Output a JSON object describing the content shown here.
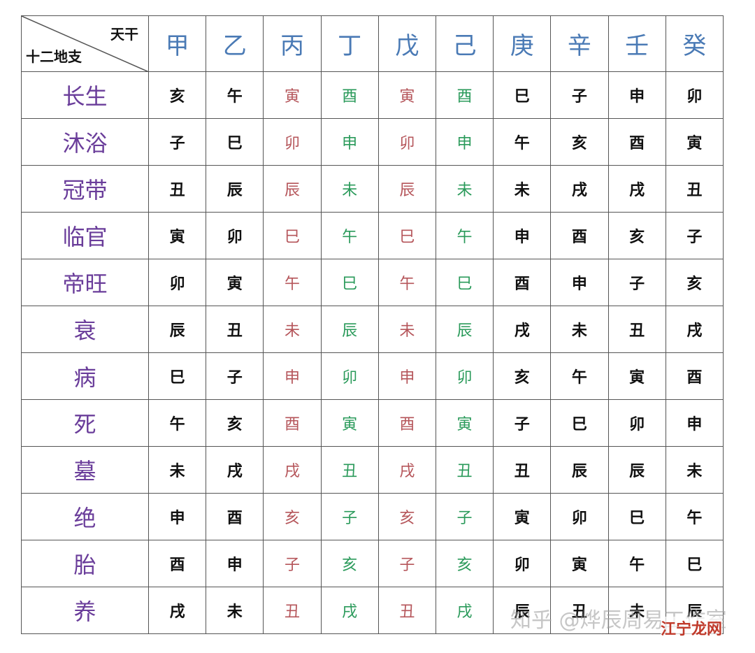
{
  "table": {
    "corner_top": "天干",
    "corner_bottom": "十二地支",
    "columns": [
      "甲",
      "乙",
      "丙",
      "丁",
      "戊",
      "己",
      "庚",
      "辛",
      "壬",
      "癸"
    ],
    "rows": [
      {
        "label": "长生",
        "cells": [
          "亥",
          "午",
          "寅",
          "酉",
          "寅",
          "酉",
          "巳",
          "子",
          "申",
          "卯"
        ]
      },
      {
        "label": "沐浴",
        "cells": [
          "子",
          "巳",
          "卯",
          "申",
          "卯",
          "申",
          "午",
          "亥",
          "酉",
          "寅"
        ]
      },
      {
        "label": "冠带",
        "cells": [
          "丑",
          "辰",
          "辰",
          "未",
          "辰",
          "未",
          "未",
          "戌",
          "戌",
          "丑"
        ]
      },
      {
        "label": "临官",
        "cells": [
          "寅",
          "卯",
          "巳",
          "午",
          "巳",
          "午",
          "申",
          "酉",
          "亥",
          "子"
        ]
      },
      {
        "label": "帝旺",
        "cells": [
          "卯",
          "寅",
          "午",
          "巳",
          "午",
          "巳",
          "酉",
          "申",
          "子",
          "亥"
        ]
      },
      {
        "label": "衰",
        "cells": [
          "辰",
          "丑",
          "未",
          "辰",
          "未",
          "辰",
          "戌",
          "未",
          "丑",
          "戌"
        ]
      },
      {
        "label": "病",
        "cells": [
          "巳",
          "子",
          "申",
          "卯",
          "申",
          "卯",
          "亥",
          "午",
          "寅",
          "酉"
        ]
      },
      {
        "label": "死",
        "cells": [
          "午",
          "亥",
          "酉",
          "寅",
          "酉",
          "寅",
          "子",
          "巳",
          "卯",
          "申"
        ]
      },
      {
        "label": "墓",
        "cells": [
          "未",
          "戌",
          "戌",
          "丑",
          "戌",
          "丑",
          "丑",
          "辰",
          "辰",
          "未"
        ]
      },
      {
        "label": "绝",
        "cells": [
          "申",
          "酉",
          "亥",
          "子",
          "亥",
          "子",
          "寅",
          "卯",
          "巳",
          "午"
        ]
      },
      {
        "label": "胎",
        "cells": [
          "酉",
          "申",
          "子",
          "亥",
          "子",
          "亥",
          "卯",
          "寅",
          "午",
          "巳"
        ]
      },
      {
        "label": "养",
        "cells": [
          "戌",
          "未",
          "丑",
          "戌",
          "丑",
          "戌",
          "辰",
          "丑",
          "未",
          "辰"
        ]
      }
    ]
  },
  "watermark": "知乎 @烨辰周易工作室",
  "logo": "江宁龙网"
}
